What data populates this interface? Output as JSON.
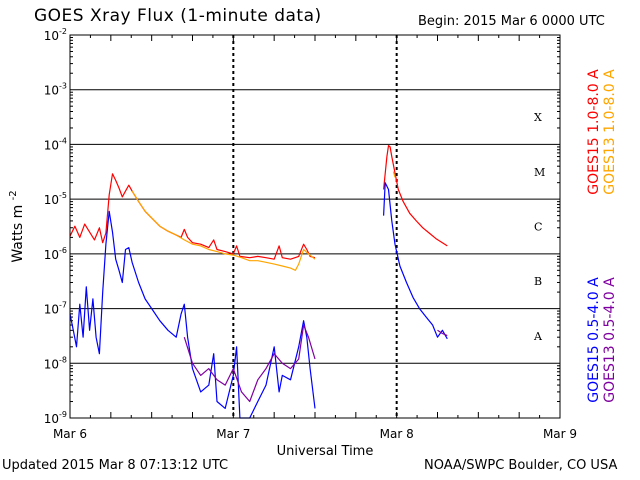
{
  "header": {
    "title": "GOES Xray Flux (1-minute data)",
    "begin": "Begin:  2015 Mar 6 0000 UTC"
  },
  "footer": {
    "updated": "Updated 2015 Mar  8 07:13:12 UTC",
    "credit": "NOAA/SWPC Boulder, CO USA"
  },
  "colors": {
    "goes15_long": "#ff0000",
    "goes13_long": "#ffa500",
    "goes15_short": "#0000ff",
    "goes13_short": "#7f00a0",
    "grid": "#000000",
    "background": "#ffffff"
  },
  "chart_data": {
    "type": "line",
    "xlabel": "Universal Time",
    "ylabel": "Watts m",
    "ylabel_sup": "-2",
    "yscale": "log",
    "xlim": [
      0,
      3
    ],
    "ylim": [
      1e-09,
      0.01
    ],
    "x_ticks": [
      {
        "x": 0,
        "label": "Mar 6"
      },
      {
        "x": 1,
        "label": "Mar 7"
      },
      {
        "x": 2,
        "label": "Mar 8"
      },
      {
        "x": 3,
        "label": "Mar 9"
      }
    ],
    "y_ticks": [
      {
        "exp": -9,
        "base": "10",
        "sup": "-9"
      },
      {
        "exp": -8,
        "base": "10",
        "sup": "-8"
      },
      {
        "exp": -7,
        "base": "10",
        "sup": "-7"
      },
      {
        "exp": -6,
        "base": "10",
        "sup": "-6"
      },
      {
        "exp": -5,
        "base": "10",
        "sup": "-5"
      },
      {
        "exp": -4,
        "base": "10",
        "sup": "-4"
      },
      {
        "exp": -3,
        "base": "10",
        "sup": "-3"
      },
      {
        "exp": -2,
        "base": "10",
        "sup": "-2"
      }
    ],
    "flare_classes": [
      {
        "label": "A",
        "exp": -7.5
      },
      {
        "label": "B",
        "exp": -6.5
      },
      {
        "label": "C",
        "exp": -5.5
      },
      {
        "label": "M",
        "exp": -4.5
      },
      {
        "label": "X",
        "exp": -3.5
      }
    ],
    "grid": true,
    "legend_position": "right, vertical",
    "series": [
      {
        "name": "GOES15 1.0-8.0 A",
        "color": "#ff0000",
        "points": [
          [
            0,
            2.1e-06
          ],
          [
            0.03,
            3.2e-06
          ],
          [
            0.06,
            2e-06
          ],
          [
            0.09,
            3.5e-06
          ],
          [
            0.12,
            2.5e-06
          ],
          [
            0.15,
            1.8e-06
          ],
          [
            0.18,
            3e-06
          ],
          [
            0.2,
            1.6e-06
          ],
          [
            0.22,
            2.4e-06
          ],
          [
            0.24,
            1.2e-05
          ],
          [
            0.26,
            2.9e-05
          ],
          [
            0.28,
            2.2e-05
          ],
          [
            0.3,
            1.6e-05
          ],
          [
            0.32,
            1.1e-05
          ],
          [
            0.34,
            1.4e-05
          ],
          [
            0.36,
            1.8e-05
          ],
          [
            0.38,
            1.4e-05
          ],
          [
            0.42,
            9e-06
          ],
          [
            0.46,
            6e-06
          ],
          [
            0.5,
            4.5e-06
          ],
          [
            0.55,
            3.2e-06
          ],
          [
            0.6,
            2.6e-06
          ],
          [
            0.65,
            2.2e-06
          ],
          [
            0.68,
            2e-06
          ],
          [
            0.7,
            2.8e-06
          ],
          [
            0.72,
            2e-06
          ],
          [
            0.75,
            1.6e-06
          ],
          [
            0.8,
            1.5e-06
          ],
          [
            0.85,
            1.3e-06
          ],
          [
            0.88,
            1.8e-06
          ],
          [
            0.9,
            1.2e-06
          ],
          [
            0.95,
            1.1e-06
          ],
          [
            1.0,
            1e-06
          ],
          [
            1.02,
            1.4e-06
          ],
          [
            1.04,
            9e-07
          ],
          [
            1.1,
            8.5e-07
          ],
          [
            1.15,
            9e-07
          ],
          [
            1.2,
            8.5e-07
          ],
          [
            1.25,
            8e-07
          ],
          [
            1.28,
            1.4e-06
          ],
          [
            1.3,
            8.5e-07
          ],
          [
            1.35,
            8e-07
          ],
          [
            1.4,
            9e-07
          ],
          [
            1.43,
            1.5e-06
          ],
          [
            1.45,
            1.2e-06
          ],
          [
            1.47,
            9e-07
          ],
          [
            1.5,
            8.5e-07
          ]
        ]
      },
      {
        "name": "GOES13 1.0-8.0 A",
        "color": "#ffa500",
        "points": [
          [
            0.38,
            1.4e-05
          ],
          [
            0.42,
            9e-06
          ],
          [
            0.46,
            6e-06
          ],
          [
            0.5,
            4.5e-06
          ],
          [
            0.55,
            3.2e-06
          ],
          [
            0.6,
            2.6e-06
          ],
          [
            0.65,
            2.2e-06
          ],
          [
            0.7,
            1.8e-06
          ],
          [
            0.75,
            1.5e-06
          ],
          [
            0.8,
            1.4e-06
          ],
          [
            0.85,
            1.2e-06
          ],
          [
            0.9,
            1.1e-06
          ],
          [
            0.95,
            1e-06
          ],
          [
            1.0,
            9.5e-07
          ],
          [
            1.05,
            8.5e-07
          ],
          [
            1.1,
            7.5e-07
          ],
          [
            1.15,
            7.5e-07
          ],
          [
            1.2,
            7e-07
          ],
          [
            1.25,
            6.5e-07
          ],
          [
            1.3,
            6e-07
          ],
          [
            1.35,
            5.5e-07
          ],
          [
            1.38,
            5e-07
          ],
          [
            1.4,
            6.5e-07
          ],
          [
            1.43,
            1.2e-06
          ],
          [
            1.46,
            1e-06
          ],
          [
            1.5,
            8e-07
          ]
        ]
      },
      {
        "name": "GOES15 0.5-4.0 A",
        "color": "#0000ff",
        "points": [
          [
            0,
            8e-08
          ],
          [
            0.02,
            4e-08
          ],
          [
            0.04,
            2e-08
          ],
          [
            0.06,
            1.2e-07
          ],
          [
            0.08,
            3e-08
          ],
          [
            0.1,
            2.5e-07
          ],
          [
            0.12,
            4e-08
          ],
          [
            0.14,
            1.5e-07
          ],
          [
            0.16,
            3e-08
          ],
          [
            0.18,
            1.5e-08
          ],
          [
            0.2,
            2e-07
          ],
          [
            0.22,
            1.5e-06
          ],
          [
            0.24,
            6e-06
          ],
          [
            0.26,
            2.5e-06
          ],
          [
            0.28,
            8e-07
          ],
          [
            0.3,
            5e-07
          ],
          [
            0.32,
            3e-07
          ],
          [
            0.34,
            1.2e-06
          ],
          [
            0.36,
            1.3e-06
          ],
          [
            0.38,
            7e-07
          ],
          [
            0.42,
            3e-07
          ],
          [
            0.46,
            1.5e-07
          ],
          [
            0.5,
            1e-07
          ],
          [
            0.55,
            6e-08
          ],
          [
            0.6,
            4e-08
          ],
          [
            0.65,
            3e-08
          ],
          [
            0.68,
            8e-08
          ],
          [
            0.7,
            1.2e-07
          ],
          [
            0.72,
            3e-08
          ],
          [
            0.75,
            8e-09
          ],
          [
            0.8,
            3e-09
          ],
          [
            0.85,
            4e-09
          ],
          [
            0.88,
            1.5e-08
          ],
          [
            0.9,
            2e-09
          ],
          [
            0.95,
            1.5e-09
          ],
          [
            1.0,
            6e-09
          ],
          [
            1.02,
            2e-08
          ],
          [
            1.04,
            1e-09
          ],
          [
            1.1,
            1e-09
          ],
          [
            1.15,
            2e-09
          ],
          [
            1.2,
            4e-09
          ],
          [
            1.25,
            2e-08
          ],
          [
            1.28,
            3e-09
          ],
          [
            1.3,
            6e-09
          ],
          [
            1.35,
            5e-09
          ],
          [
            1.4,
            2e-08
          ],
          [
            1.43,
            6e-08
          ],
          [
            1.45,
            3e-08
          ],
          [
            1.47,
            8e-09
          ],
          [
            1.5,
            1.5e-09
          ]
        ]
      },
      {
        "name": "GOES13 0.5-4.0 A",
        "color": "#7f00a0",
        "points": [
          [
            0.7,
            3e-08
          ],
          [
            0.75,
            1e-08
          ],
          [
            0.8,
            6e-09
          ],
          [
            0.85,
            8e-09
          ],
          [
            0.9,
            5e-09
          ],
          [
            0.95,
            4e-09
          ],
          [
            1.0,
            8e-09
          ],
          [
            1.05,
            3e-09
          ],
          [
            1.1,
            2e-09
          ],
          [
            1.15,
            5e-09
          ],
          [
            1.2,
            8e-09
          ],
          [
            1.25,
            1.5e-08
          ],
          [
            1.3,
            1e-08
          ],
          [
            1.35,
            8e-09
          ],
          [
            1.4,
            1.2e-08
          ],
          [
            1.43,
            5e-08
          ],
          [
            1.46,
            3e-08
          ],
          [
            1.5,
            1.2e-08
          ]
        ]
      },
      {
        "name": "GOES15 1.0-8.0 A (Mar 8)",
        "color": "#ff0000",
        "points": [
          [
            1.92,
            1.5e-05
          ],
          [
            1.94,
            6e-05
          ],
          [
            1.95,
            9.5e-05
          ],
          [
            1.96,
            9e-05
          ],
          [
            1.97,
            6e-05
          ],
          [
            1.99,
            3e-05
          ],
          [
            2.01,
            1.5e-05
          ],
          [
            2.04,
            9e-06
          ],
          [
            2.08,
            5.5e-06
          ],
          [
            2.12,
            4e-06
          ],
          [
            2.16,
            3e-06
          ],
          [
            2.2,
            2.4e-06
          ],
          [
            2.24,
            1.9e-06
          ],
          [
            2.28,
            1.6e-06
          ],
          [
            2.31,
            1.4e-06
          ]
        ]
      },
      {
        "name": "GOES13 1.0-8.0 A (Mar 8)",
        "color": "#ffa500",
        "points": [
          [
            1.98,
            3.2e-05
          ],
          [
            1.99,
            2.5e-05
          ]
        ]
      },
      {
        "name": "GOES15 0.5-4.0 A (Mar 8)",
        "color": "#0000ff",
        "points": [
          [
            1.92,
            5e-06
          ],
          [
            1.93,
            2e-05
          ],
          [
            1.95,
            1.5e-05
          ],
          [
            1.97,
            4e-06
          ],
          [
            1.99,
            1.5e-06
          ],
          [
            2.02,
            6e-07
          ],
          [
            2.06,
            3e-07
          ],
          [
            2.1,
            1.6e-07
          ],
          [
            2.14,
            1e-07
          ],
          [
            2.18,
            7e-08
          ],
          [
            2.22,
            5e-08
          ],
          [
            2.25,
            3e-08
          ],
          [
            2.28,
            4e-08
          ],
          [
            2.31,
            2.8e-08
          ]
        ]
      },
      {
        "name": "GOES13 0.5-4.0 A (Mar 8)",
        "color": "#7f00a0",
        "points": [
          [
            2.25,
            4e-08
          ],
          [
            2.28,
            3.5e-08
          ],
          [
            2.31,
            3.2e-08
          ]
        ]
      }
    ]
  }
}
